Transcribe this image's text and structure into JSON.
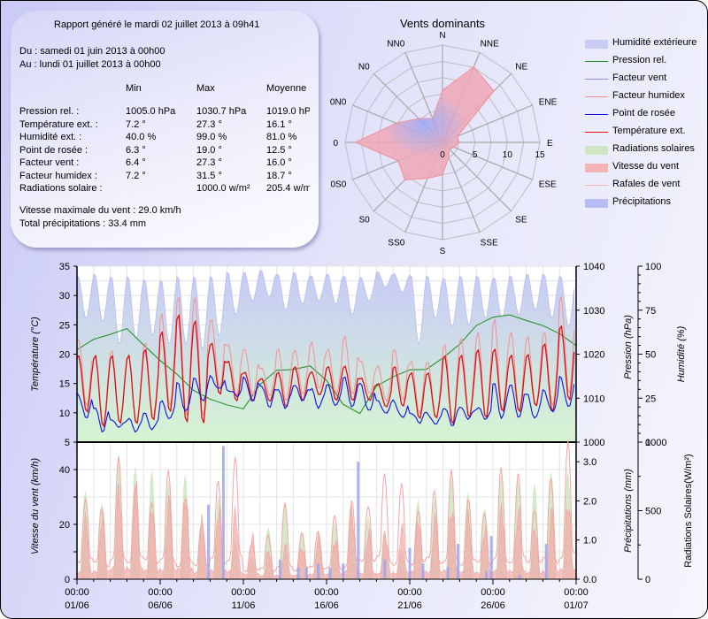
{
  "summary": {
    "report_line": "Rapport généré le mardi 02 juillet 2013 à 09h41",
    "from_line": "Du : samedi 01 juin 2013 à 00h00",
    "to_line": "Au : lundi 01 juillet 2013 à 00h00",
    "columns": [
      "Min",
      "Max",
      "Moyenne"
    ],
    "rows": [
      {
        "label": "Pression rel. :",
        "min": "1005.0 hPa",
        "max": "1030.7 hPa",
        "avg": "1019.0 hPa"
      },
      {
        "label": "Température ext. :",
        "min": "7.2 °",
        "max": "27.3 °",
        "avg": "16.1 °"
      },
      {
        "label": "Humidité ext. :",
        "min": "40.0 %",
        "max": "99.0 %",
        "avg": "81.0 %"
      },
      {
        "label": "Point de rosée :",
        "min": "6.3 °",
        "max": "19.0 °",
        "avg": "12.5 °"
      },
      {
        "label": "Facteur vent :",
        "min": "6.4 °",
        "max": "27.3 °",
        "avg": "16.0 °"
      },
      {
        "label": "Facteur humidex :",
        "min": "7.2 °",
        "max": "31.5 °",
        "avg": "18.7 °"
      },
      {
        "label": "Radiations solaire :",
        "min": "",
        "max": "1000.0 w/m²",
        "avg": "205.4 w/m²"
      }
    ],
    "max_wind": "Vitesse maximale du vent : 29.0 km/h",
    "total_rain": "Total précipitations : 33.4 mm"
  },
  "legend": [
    {
      "label": "Humidité extérieure",
      "kind": "area",
      "color": "#c9ccf4"
    },
    {
      "label": "Pression rel.",
      "kind": "line",
      "color": "#1a8a1a"
    },
    {
      "label": "Facteur vent",
      "kind": "line",
      "color": "#8c8cf0"
    },
    {
      "label": "Facteur humidex",
      "kind": "line",
      "color": "#f48a8a"
    },
    {
      "label": "Point de rosée",
      "kind": "line",
      "color": "#1010e0"
    },
    {
      "label": "Température ext.",
      "kind": "line",
      "color": "#e01010"
    },
    {
      "label": "Radiations solaires",
      "kind": "area",
      "color": "#cfe6c4"
    },
    {
      "label": "Vitesse du vent",
      "kind": "area",
      "color": "#f4b4b4"
    },
    {
      "label": "Rafales de vent",
      "kind": "line",
      "color": "#f8b0b0"
    },
    {
      "label": "Précipitations",
      "kind": "area",
      "color": "#b8bcf4"
    }
  ],
  "chart_data": [
    {
      "type": "radar",
      "title": "Vents dominants",
      "directions": [
        "N",
        "NNE",
        "NE",
        "ENE",
        "E",
        "ESE",
        "SE",
        "SSE",
        "S",
        "SS0",
        "S0",
        "0S0",
        "0",
        "0N0",
        "N0",
        "NN0"
      ],
      "values": [
        8.0,
        12.6,
        11.2,
        2.5,
        2.5,
        2.0,
        1.5,
        2.5,
        5.0,
        6.0,
        8.2,
        7.4,
        13.4,
        7.7,
        5.2,
        4.0
      ],
      "radial_ticks": [
        "0",
        "5",
        "10",
        "15"
      ],
      "rlim": [
        0,
        15
      ],
      "fill_color": "#f2a6ae"
    },
    {
      "type": "line",
      "title": "",
      "x_ticks": [
        {
          "time": "00:00",
          "date": "01/06"
        },
        {
          "time": "00:00",
          "date": "06/06"
        },
        {
          "time": "00:00",
          "date": "11/06"
        },
        {
          "time": "00:00",
          "date": "16/06"
        },
        {
          "time": "00:00",
          "date": "21/06"
        },
        {
          "time": "00:00",
          "date": "26/06"
        },
        {
          "time": "00:00",
          "date": "01/07"
        }
      ],
      "xlim_days": [
        0,
        30
      ],
      "ylabel": "Température (°C)",
      "ylim": [
        5,
        35
      ],
      "yticks": [
        "5",
        "10",
        "15",
        "20",
        "25",
        "30",
        "35"
      ],
      "y2label": "Pression (hPa)",
      "y2lim": [
        1000,
        1040
      ],
      "y2ticks": [
        "1000",
        "1010",
        "1020",
        "1030",
        "1040"
      ],
      "y3label": "Humidité (%)",
      "y3lim": [
        0,
        100
      ],
      "y3ticks": [
        "0",
        "25",
        "50",
        "75",
        "100"
      ],
      "series": [
        {
          "name": "Température ext.",
          "axis": "temp",
          "daily_min": [
            10,
            7.5,
            8,
            8,
            8.5,
            10,
            8,
            8,
            13,
            12,
            12,
            12,
            11,
            12,
            13,
            12,
            12,
            12,
            11,
            11,
            9,
            9,
            8,
            9,
            9,
            10,
            10,
            11,
            10,
            12
          ],
          "daily_max": [
            20,
            20,
            20,
            20,
            21,
            24,
            27,
            26,
            22,
            19,
            17,
            16,
            17,
            18,
            17,
            18,
            18,
            16,
            15,
            18,
            17,
            17,
            20,
            20,
            21,
            21,
            20,
            20,
            22,
            25
          ]
        },
        {
          "name": "Facteur humidex",
          "axis": "temp",
          "daily_min": [
            11,
            8,
            8,
            8,
            9,
            11,
            9,
            9,
            14,
            13,
            13,
            13,
            12,
            13,
            14,
            13,
            13,
            13,
            12,
            12,
            10,
            9,
            8,
            9,
            9,
            10,
            10,
            11,
            11,
            13
          ],
          "daily_max": [
            23,
            20,
            21,
            20,
            22,
            27,
            30,
            30,
            26,
            22,
            21,
            18,
            21,
            21,
            22,
            21,
            23,
            19,
            18,
            21,
            19,
            19,
            22,
            23,
            24,
            26,
            24,
            23,
            24,
            30
          ]
        },
        {
          "name": "Point de rosée",
          "axis": "temp",
          "daily_min": [
            9,
            7,
            7.5,
            7,
            7,
            9,
            10,
            12,
            14,
            13,
            12,
            11,
            11,
            12,
            11,
            11,
            11,
            10,
            10,
            9,
            8.5,
            8,
            8,
            9,
            9,
            9,
            9,
            9,
            10,
            11
          ],
          "daily_max": [
            13.5,
            11,
            9,
            9,
            10,
            12,
            15,
            16,
            16,
            14,
            16,
            15,
            14,
            15,
            14,
            15,
            16,
            15,
            12,
            12,
            10,
            10,
            11,
            11,
            11,
            15,
            15,
            13,
            14,
            16
          ]
        },
        {
          "name": "Pression rel.",
          "axis": "pressure",
          "daily": [
            1021,
            1023,
            1025,
            1025.5,
            1022,
            1019,
            1015,
            1012,
            1010,
            1008,
            1008,
            1013,
            1016,
            1017,
            1017,
            1014,
            1009,
            1006,
            1013,
            1015,
            1016,
            1017,
            1019,
            1022,
            1027,
            1028,
            1029,
            1028,
            1026,
            1025,
            1022
          ]
        },
        {
          "name": "Humidité extérieure",
          "axis": "humidity",
          "daily_min": [
            70,
            68,
            55,
            58,
            60,
            55,
            55,
            52,
            60,
            72,
            80,
            82,
            75,
            78,
            80,
            78,
            72,
            80,
            88,
            85,
            55,
            70,
            65,
            66,
            70,
            70,
            72,
            75,
            70,
            65
          ],
          "daily_max": [
            95,
            96,
            95,
            95,
            93,
            93,
            95,
            95,
            95,
            97,
            97,
            98,
            96,
            97,
            95,
            96,
            95,
            94,
            97,
            96,
            96,
            95,
            94,
            95,
            95,
            94,
            95,
            96,
            96,
            95
          ]
        }
      ]
    },
    {
      "type": "area",
      "ylabel": "Vitesse du vent (km/h)",
      "ylim": [
        0,
        50
      ],
      "yticks": [
        "0",
        "20",
        "40"
      ],
      "y2label": "Précipitations (mm)",
      "y2lim": [
        0,
        3.5
      ],
      "y2ticks": [
        "0.0",
        "1.0",
        "2.0",
        "3.0"
      ],
      "y3label": "Radiations Solaires(W/m²)",
      "y3lim": [
        0,
        1000
      ],
      "y3ticks": [
        "0",
        "500",
        "1000"
      ],
      "series": [
        {
          "name": "Radiations solaires",
          "daily_peak": [
            650,
            560,
            890,
            830,
            800,
            720,
            770,
            370,
            610,
            290,
            160,
            380,
            560,
            350,
            310,
            420,
            500,
            460,
            330,
            220,
            580,
            600,
            760,
            640,
            520,
            780,
            740,
            700,
            790,
            800
          ]
        },
        {
          "name": "Vitesse du vent",
          "daily_peak": [
            25,
            27,
            38,
            38,
            30,
            33,
            36,
            24,
            30,
            28,
            18,
            12,
            14,
            14,
            18,
            17,
            28,
            20,
            20,
            22,
            26,
            25,
            30,
            26,
            22,
            30,
            28,
            22,
            28,
            33
          ]
        },
        {
          "name": "Rafales de vent",
          "daily_peak": [
            40,
            32,
            45,
            42,
            38,
            41,
            33,
            29,
            40,
            46,
            18,
            20,
            28,
            21,
            24,
            24,
            32,
            38,
            43,
            36,
            34,
            40,
            40,
            36,
            33,
            42,
            43,
            36,
            41,
            52
          ]
        },
        {
          "name": "Précipitations",
          "events": [
            {
              "day": 7.9,
              "mm": 1.9
            },
            {
              "day": 8.8,
              "mm": 3.4
            },
            {
              "day": 12.2,
              "mm": 0.5
            },
            {
              "day": 13.3,
              "mm": 0.3
            },
            {
              "day": 13.8,
              "mm": 0.3
            },
            {
              "day": 14.5,
              "mm": 0.4
            },
            {
              "day": 15.2,
              "mm": 0.3
            },
            {
              "day": 16.0,
              "mm": 0.4
            },
            {
              "day": 16.9,
              "mm": 3.0
            },
            {
              "day": 18.5,
              "mm": 0.5
            },
            {
              "day": 20.0,
              "mm": 0.8
            },
            {
              "day": 20.8,
              "mm": 0.4
            },
            {
              "day": 22.3,
              "mm": 0.3
            },
            {
              "day": 22.9,
              "mm": 0.9
            },
            {
              "day": 24.6,
              "mm": 0.2
            },
            {
              "day": 24.9,
              "mm": 1.1
            },
            {
              "day": 26.6,
              "mm": 0.1
            },
            {
              "day": 28.2,
              "mm": 0.9
            }
          ]
        }
      ]
    }
  ]
}
